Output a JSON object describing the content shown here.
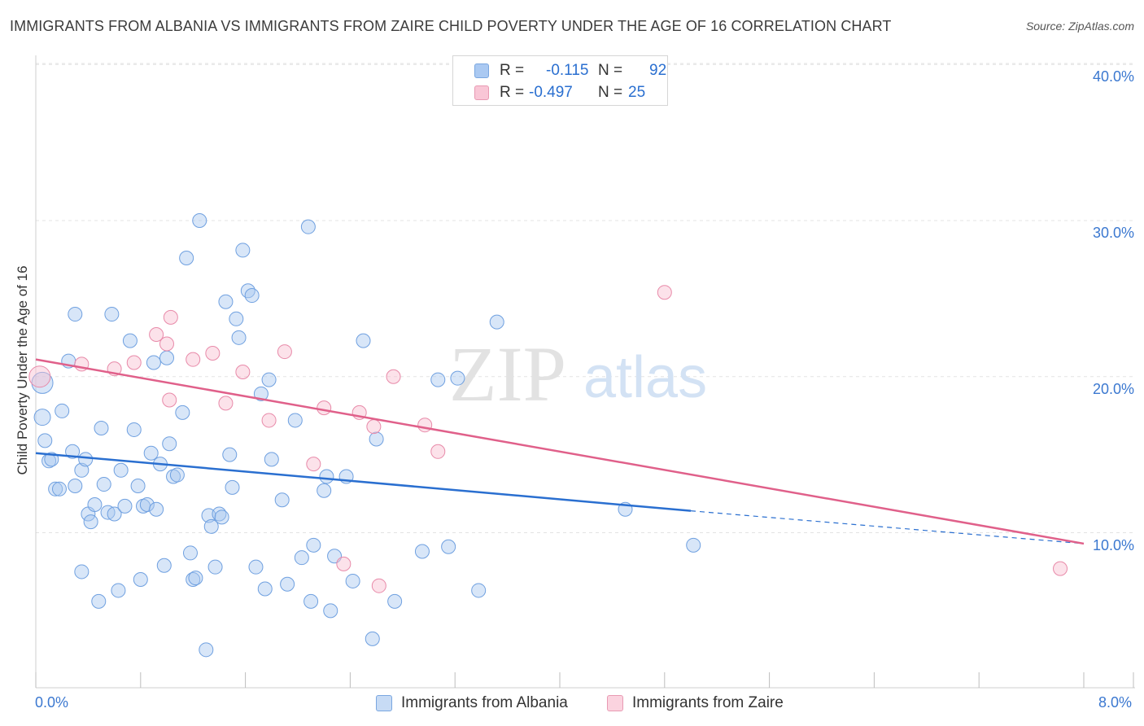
{
  "title": "IMMIGRANTS FROM ALBANIA VS IMMIGRANTS FROM ZAIRE CHILD POVERTY UNDER THE AGE OF 16 CORRELATION CHART",
  "source": "Source: ZipAtlas.com",
  "watermark": {
    "zip": "ZIP",
    "atlas": "atlas"
  },
  "legend_top": [
    {
      "r_label": "R =",
      "r_value": "-0.115",
      "n_label": "N =",
      "n_value": "92",
      "color": "#aac9f2",
      "border": "#7aa7e0"
    },
    {
      "r_label": "R =",
      "r_value": "-0.497",
      "n_label": "N =",
      "n_value": "25",
      "color": "#f9c6d6",
      "border": "#e89ab3"
    }
  ],
  "legend_bottom": [
    {
      "label": "Immigrants from Albania",
      "color": "#c7dbf5",
      "border": "#7aa7e0"
    },
    {
      "label": "Immigrants from Zaire",
      "color": "#fbd3df",
      "border": "#e89ab3"
    }
  ],
  "chart_data": {
    "type": "scatter",
    "title": "IMMIGRANTS FROM ALBANIA VS IMMIGRANTS FROM ZAIRE CHILD POVERTY UNDER THE AGE OF 16 CORRELATION CHART",
    "xlabel": "",
    "ylabel": "Child Poverty Under the Age of 16",
    "xlim": [
      0,
      8
    ],
    "ylim": [
      1,
      41
    ],
    "x_tick_labels": [
      "0.0%",
      "8.0%"
    ],
    "y_tick_labels": [
      "10.0%",
      "20.0%",
      "30.0%",
      "40.0%"
    ],
    "y_ticks": [
      10,
      20,
      30,
      40
    ],
    "grid": true,
    "legend_position": "top-center",
    "series": [
      {
        "name": "Immigrants from Albania",
        "color": "#6fa0e0",
        "fill": "rgba(168,199,240,0.45)",
        "trend": {
          "x": [
            0,
            5.0
          ],
          "y": [
            15.1,
            11.4
          ],
          "dashed_to_x": 8.0,
          "dashed_to_y": 9.3,
          "color": "#2a6fd0"
        },
        "points": [
          [
            0.05,
            19.6
          ],
          [
            0.05,
            17.4
          ],
          [
            0.07,
            15.9
          ],
          [
            0.1,
            14.6
          ],
          [
            0.12,
            14.7
          ],
          [
            0.15,
            12.8
          ],
          [
            0.18,
            12.8
          ],
          [
            0.2,
            17.8
          ],
          [
            0.25,
            21.0
          ],
          [
            0.28,
            15.2
          ],
          [
            0.3,
            13.0
          ],
          [
            0.3,
            24.0
          ],
          [
            0.35,
            14.0
          ],
          [
            0.35,
            7.5
          ],
          [
            0.38,
            14.7
          ],
          [
            0.4,
            11.2
          ],
          [
            0.42,
            10.7
          ],
          [
            0.45,
            11.8
          ],
          [
            0.48,
            5.6
          ],
          [
            0.5,
            16.7
          ],
          [
            0.52,
            13.1
          ],
          [
            0.55,
            11.3
          ],
          [
            0.58,
            24.0
          ],
          [
            0.6,
            11.2
          ],
          [
            0.63,
            6.3
          ],
          [
            0.65,
            14.0
          ],
          [
            0.68,
            11.7
          ],
          [
            0.72,
            22.3
          ],
          [
            0.75,
            16.6
          ],
          [
            0.78,
            13.0
          ],
          [
            0.8,
            7.0
          ],
          [
            0.82,
            11.7
          ],
          [
            0.85,
            11.8
          ],
          [
            0.88,
            15.1
          ],
          [
            0.9,
            20.9
          ],
          [
            0.92,
            11.5
          ],
          [
            0.95,
            14.4
          ],
          [
            0.98,
            7.9
          ],
          [
            1.0,
            21.2
          ],
          [
            1.02,
            15.7
          ],
          [
            1.05,
            13.6
          ],
          [
            1.08,
            13.7
          ],
          [
            1.12,
            17.7
          ],
          [
            1.15,
            27.6
          ],
          [
            1.18,
            8.7
          ],
          [
            1.2,
            7.0
          ],
          [
            1.22,
            7.1
          ],
          [
            1.25,
            30.0
          ],
          [
            1.3,
            2.5
          ],
          [
            1.32,
            11.1
          ],
          [
            1.34,
            10.4
          ],
          [
            1.37,
            7.8
          ],
          [
            1.4,
            11.2
          ],
          [
            1.42,
            11.0
          ],
          [
            1.45,
            24.8
          ],
          [
            1.48,
            15.0
          ],
          [
            1.5,
            12.9
          ],
          [
            1.53,
            23.7
          ],
          [
            1.55,
            22.5
          ],
          [
            1.58,
            28.1
          ],
          [
            1.62,
            25.5
          ],
          [
            1.65,
            25.2
          ],
          [
            1.68,
            7.8
          ],
          [
            1.72,
            18.9
          ],
          [
            1.75,
            6.4
          ],
          [
            1.78,
            19.8
          ],
          [
            1.8,
            14.7
          ],
          [
            1.88,
            12.1
          ],
          [
            1.92,
            6.7
          ],
          [
            1.98,
            17.2
          ],
          [
            2.03,
            8.4
          ],
          [
            2.08,
            29.6
          ],
          [
            2.1,
            5.6
          ],
          [
            2.12,
            9.2
          ],
          [
            2.2,
            12.7
          ],
          [
            2.22,
            13.6
          ],
          [
            2.25,
            5.0
          ],
          [
            2.28,
            8.5
          ],
          [
            2.37,
            13.6
          ],
          [
            2.42,
            6.9
          ],
          [
            2.5,
            22.3
          ],
          [
            2.57,
            3.2
          ],
          [
            2.6,
            16.0
          ],
          [
            2.74,
            5.6
          ],
          [
            2.95,
            8.8
          ],
          [
            3.07,
            19.8
          ],
          [
            3.15,
            9.1
          ],
          [
            3.22,
            19.9
          ],
          [
            3.38,
            6.3
          ],
          [
            3.52,
            23.5
          ],
          [
            4.5,
            11.5
          ],
          [
            5.02,
            9.2
          ]
        ]
      },
      {
        "name": "Immigrants from Zaire",
        "color": "#e88aa9",
        "fill": "rgba(249,190,209,0.45)",
        "trend": {
          "x": [
            0,
            8.0
          ],
          "y": [
            21.1,
            9.3
          ],
          "color": "#e0608a"
        },
        "points": [
          [
            0.03,
            20.0
          ],
          [
            0.35,
            20.8
          ],
          [
            0.6,
            20.5
          ],
          [
            0.75,
            20.9
          ],
          [
            0.92,
            22.7
          ],
          [
            1.0,
            22.1
          ],
          [
            1.02,
            18.5
          ],
          [
            1.03,
            23.8
          ],
          [
            1.2,
            21.1
          ],
          [
            1.35,
            21.5
          ],
          [
            1.45,
            18.3
          ],
          [
            1.58,
            20.3
          ],
          [
            1.78,
            17.2
          ],
          [
            1.9,
            21.6
          ],
          [
            2.12,
            14.4
          ],
          [
            2.2,
            18.0
          ],
          [
            2.35,
            8.0
          ],
          [
            2.47,
            17.7
          ],
          [
            2.58,
            16.8
          ],
          [
            2.62,
            6.6
          ],
          [
            2.73,
            20.0
          ],
          [
            2.97,
            16.9
          ],
          [
            3.07,
            15.2
          ],
          [
            4.8,
            25.4
          ],
          [
            7.82,
            7.7
          ]
        ]
      }
    ]
  }
}
